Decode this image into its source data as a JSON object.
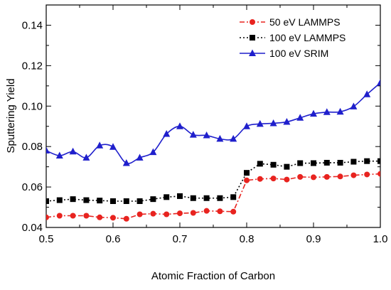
{
  "chart_data": {
    "type": "line",
    "xlabel": "Atomic Fraction of Carbon",
    "ylabel": "Sputtering Yield",
    "xlim": [
      0.5,
      1.0
    ],
    "ylim": [
      0.04,
      0.15
    ],
    "xticks": [
      "0.5",
      "0.6",
      "0.7",
      "0.8",
      "0.9",
      "1.0"
    ],
    "xtick_values": [
      0.5,
      0.6,
      0.7,
      0.8,
      0.9,
      1.0
    ],
    "yticks": [
      "0.04",
      "0.06",
      "0.08",
      "0.10",
      "0.12",
      "0.14"
    ],
    "ytick_values": [
      0.04,
      0.06,
      0.08,
      0.1,
      0.12,
      0.14
    ],
    "grid": false,
    "legend_position": "top-right",
    "x": [
      0.5,
      0.52,
      0.54,
      0.56,
      0.58,
      0.6,
      0.62,
      0.64,
      0.66,
      0.68,
      0.7,
      0.72,
      0.74,
      0.76,
      0.78,
      0.8,
      0.82,
      0.84,
      0.86,
      0.88,
      0.9,
      0.92,
      0.94,
      0.96,
      0.98,
      1.0
    ],
    "series": [
      {
        "name": "50 eV LAMMPS",
        "color": "#e8231f",
        "marker": "circle",
        "line_style": "dash-dot",
        "values": [
          0.045,
          0.0458,
          0.0458,
          0.0458,
          0.045,
          0.0448,
          0.0443,
          0.0465,
          0.0468,
          0.0465,
          0.047,
          0.0472,
          0.0482,
          0.048,
          0.0478,
          0.0633,
          0.064,
          0.0642,
          0.0637,
          0.065,
          0.0648,
          0.065,
          0.0652,
          0.0658,
          0.0662,
          0.0665
        ]
      },
      {
        "name": "100 eV LAMMPS",
        "color": "#000000",
        "marker": "square",
        "line_style": "dotted",
        "values": [
          0.053,
          0.0535,
          0.054,
          0.0535,
          0.0533,
          0.053,
          0.053,
          0.053,
          0.054,
          0.055,
          0.0555,
          0.0545,
          0.0545,
          0.0545,
          0.055,
          0.067,
          0.0715,
          0.071,
          0.07,
          0.0718,
          0.0718,
          0.072,
          0.072,
          0.0725,
          0.0728,
          0.0728
        ]
      },
      {
        "name": "100 eV SRIM",
        "color": "#1f1fcc",
        "marker": "triangle",
        "line_style": "solid",
        "values": [
          0.078,
          0.0755,
          0.0775,
          0.0745,
          0.0805,
          0.0798,
          0.0718,
          0.0745,
          0.0772,
          0.0862,
          0.09,
          0.0858,
          0.0855,
          0.0838,
          0.0838,
          0.09,
          0.0912,
          0.0915,
          0.0922,
          0.0942,
          0.0962,
          0.097,
          0.0972,
          0.0998,
          0.1058,
          0.1115
        ]
      }
    ]
  }
}
